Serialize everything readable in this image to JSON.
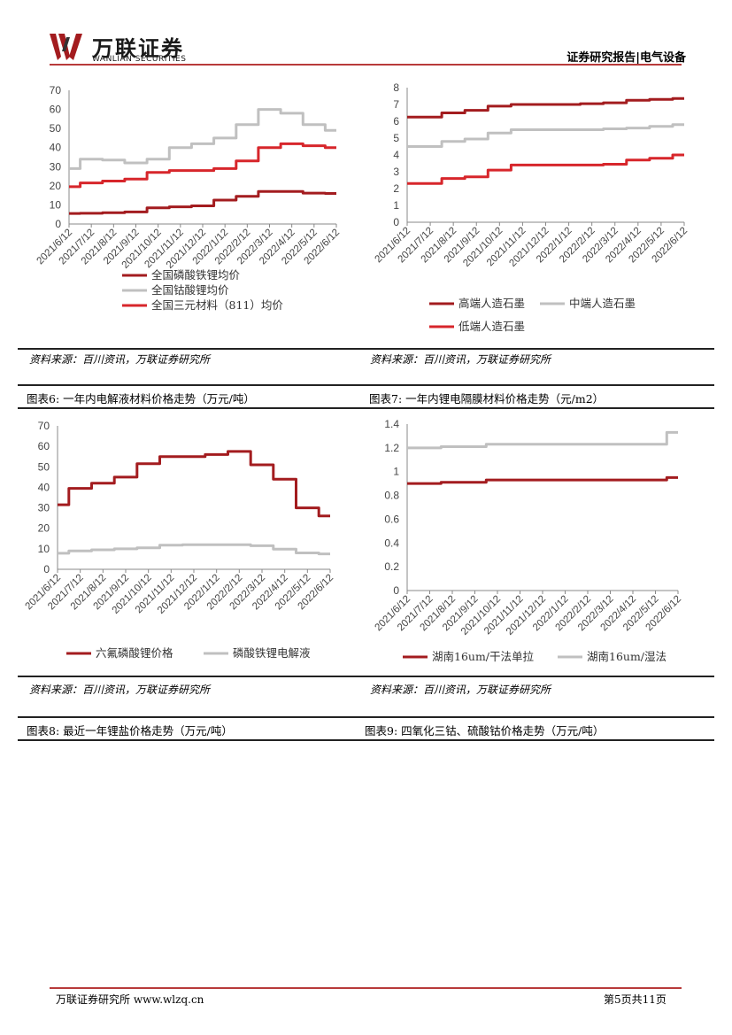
{
  "header": {
    "brand_cn": "万联证券",
    "brand_en": "WANLIAN SECURITIES",
    "report_type": "证券研究报告|电气设备",
    "brand_color": "#a31c1f"
  },
  "sources": {
    "left1": "资料来源：百川资讯，万联证券研究所",
    "right1": "资料来源：百川资讯，万联证券研究所",
    "left2": "资料来源：百川资讯，万联证券研究所",
    "right2": "资料来源：百川资讯，万联证券研究所"
  },
  "figures": {
    "fig6": "图表6:  一年内电解液材料价格走势（万元/吨）",
    "fig7": "图表7:  一年内锂电隔膜材料价格走势（元/m2）",
    "fig8": "图表8:  最近一年锂盐价格走势（万元/吨）",
    "fig9": "图表9:  四氧化三钴、硫酸钴价格走势（万元/吨）"
  },
  "footer": {
    "left": "万联证券研究所 www.wlzq.cn",
    "right": "第5页共11页"
  },
  "chart_data": [
    {
      "id": "c1",
      "type": "line",
      "categories": [
        "2021/6/12",
        "2021/7/12",
        "2021/8/12",
        "2021/9/12",
        "2021/10/12",
        "2021/11/12",
        "2021/12/12",
        "2022/1/12",
        "2022/2/12",
        "2022/3/12",
        "2022/4/12",
        "2022/5/12",
        "2022/6/12"
      ],
      "ylim": [
        0,
        70
      ],
      "yticks": [
        "0",
        "10",
        "20",
        "30",
        "40",
        "50",
        "60",
        "70"
      ],
      "legend_layout": [
        [
          0
        ],
        [
          1
        ],
        [
          2
        ]
      ],
      "series": [
        {
          "name": "全国磷酸铁锂均价",
          "color": "#a31c1f",
          "values": [
            5.5,
            5.6,
            5.9,
            6.3,
            8.5,
            9.0,
            9.5,
            12.5,
            14.5,
            17,
            17,
            16.2,
            16
          ]
        },
        {
          "name": "全国钴酸锂均价",
          "color": "#c0c0c0",
          "values": [
            29,
            34,
            33.5,
            32,
            34,
            40,
            42,
            45,
            52,
            60,
            58,
            52,
            49
          ]
        },
        {
          "name": "全国三元材料（811）均价",
          "color": "#d7262b",
          "values": [
            19.5,
            21.5,
            22.5,
            23.5,
            27,
            28,
            28,
            29,
            33,
            40,
            42,
            41,
            40
          ]
        }
      ]
    },
    {
      "id": "c2",
      "type": "line",
      "categories": [
        "2021/6/12",
        "2021/7/12",
        "2021/8/12",
        "2021/9/12",
        "2021/10/12",
        "2021/11/12",
        "2021/12/12",
        "2022/1/12",
        "2022/2/12",
        "2022/3/12",
        "2022/4/12",
        "2022/5/12",
        "2022/6/12"
      ],
      "ylim": [
        0,
        8
      ],
      "yticks": [
        "0",
        "1",
        "2",
        "3",
        "4",
        "5",
        "6",
        "7",
        "8"
      ],
      "legend_layout": [
        [
          0,
          1
        ],
        [
          2
        ]
      ],
      "series": [
        {
          "name": "高端人造石墨",
          "color": "#a31c1f",
          "values": [
            6.25,
            6.25,
            6.5,
            6.65,
            6.9,
            7.0,
            7.0,
            7.0,
            7.05,
            7.1,
            7.25,
            7.3,
            7.35
          ]
        },
        {
          "name": "中端人造石墨",
          "color": "#c0c0c0",
          "values": [
            4.5,
            4.5,
            4.8,
            4.95,
            5.3,
            5.5,
            5.5,
            5.5,
            5.5,
            5.55,
            5.6,
            5.7,
            5.8
          ]
        },
        {
          "name": "低端人造石墨",
          "color": "#d7262b",
          "values": [
            2.3,
            2.3,
            2.6,
            2.7,
            3.1,
            3.4,
            3.4,
            3.4,
            3.4,
            3.45,
            3.7,
            3.8,
            4.0
          ]
        }
      ]
    },
    {
      "id": "c3",
      "type": "line",
      "categories": [
        "2021/6/12",
        "2021/7/12",
        "2021/8/12",
        "2021/9/12",
        "2021/10/12",
        "2021/11/12",
        "2021/12/12",
        "2022/1/12",
        "2022/2/12",
        "2022/3/12",
        "2022/4/12",
        "2022/5/12",
        "2022/6/12"
      ],
      "ylim": [
        0,
        70
      ],
      "yticks": [
        "0",
        "10",
        "20",
        "30",
        "40",
        "50",
        "60",
        "70"
      ],
      "legend_layout": [
        [
          0,
          1
        ]
      ],
      "series": [
        {
          "name": "六氟磷酸锂价格",
          "color": "#a31c1f",
          "values": [
            31.5,
            39.5,
            42,
            45,
            51.5,
            55,
            55,
            56,
            57.5,
            51,
            44,
            30,
            26
          ]
        },
        {
          "name": "磷酸铁锂电解液",
          "color": "#c0c0c0",
          "values": [
            7.8,
            9,
            9.5,
            10,
            10.5,
            11.8,
            12,
            12,
            12,
            11.5,
            9.8,
            8,
            7.5
          ]
        }
      ]
    },
    {
      "id": "c4",
      "type": "line",
      "categories": [
        "2021/6/12",
        "2021/7/12",
        "2021/8/12",
        "2021/9/12",
        "2021/10/12",
        "2021/11/12",
        "2021/12/12",
        "2022/1/12",
        "2022/2/12",
        "2022/3/12",
        "2022/4/12",
        "2022/5/12",
        "2022/6/12"
      ],
      "ylim": [
        0,
        1.4
      ],
      "yticks": [
        "0",
        "0.2",
        "0.4",
        "0.6",
        "0.8",
        "1",
        "1.2",
        "1.4"
      ],
      "legend_layout": [
        [
          0,
          1
        ]
      ],
      "series": [
        {
          "name": "湖南16um/干法单拉",
          "color": "#a31c1f",
          "values": [
            0.9,
            0.9,
            0.91,
            0.91,
            0.93,
            0.93,
            0.93,
            0.93,
            0.93,
            0.93,
            0.93,
            0.93,
            0.95
          ]
        },
        {
          "name": "湖南16um/湿法",
          "color": "#c0c0c0",
          "values": [
            1.2,
            1.2,
            1.21,
            1.21,
            1.23,
            1.23,
            1.23,
            1.23,
            1.23,
            1.23,
            1.23,
            1.23,
            1.33
          ]
        }
      ]
    }
  ]
}
